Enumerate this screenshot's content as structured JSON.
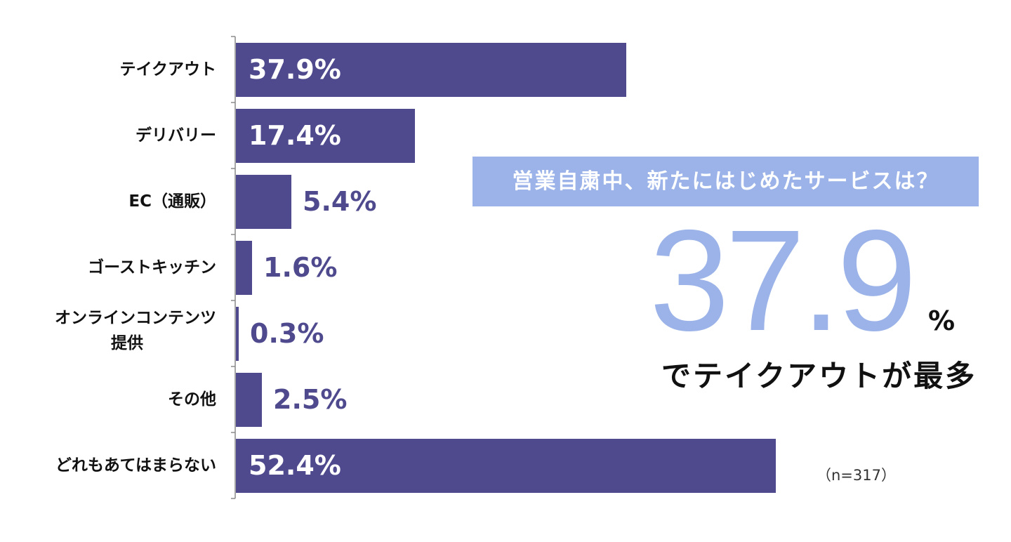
{
  "chart_data": {
    "type": "bar",
    "orientation": "horizontal",
    "categories": [
      "テイクアウト",
      "デリバリー",
      "EC（通販）",
      "ゴーストキッチン",
      "オンラインコンテンツ\n提供",
      "その他",
      "どれもあてはまらない"
    ],
    "values": [
      37.9,
      17.4,
      5.4,
      1.6,
      0.3,
      2.5,
      52.4
    ],
    "value_labels": [
      "37.9%",
      "17.4%",
      "5.4%",
      "1.6%",
      "0.3%",
      "2.5%",
      "52.4%"
    ],
    "unit": "%",
    "xlim": [
      0,
      100
    ],
    "grid": false,
    "colors": {
      "bar": "#4e4a8d",
      "accent": "#9bb3e8"
    }
  },
  "callout": {
    "banner": "営業自粛中、新たにはじめたサービスは？",
    "big_number": "37.9",
    "percent_sign": "%",
    "caption": "でテイクアウトが最多"
  },
  "note": "（n=317）"
}
